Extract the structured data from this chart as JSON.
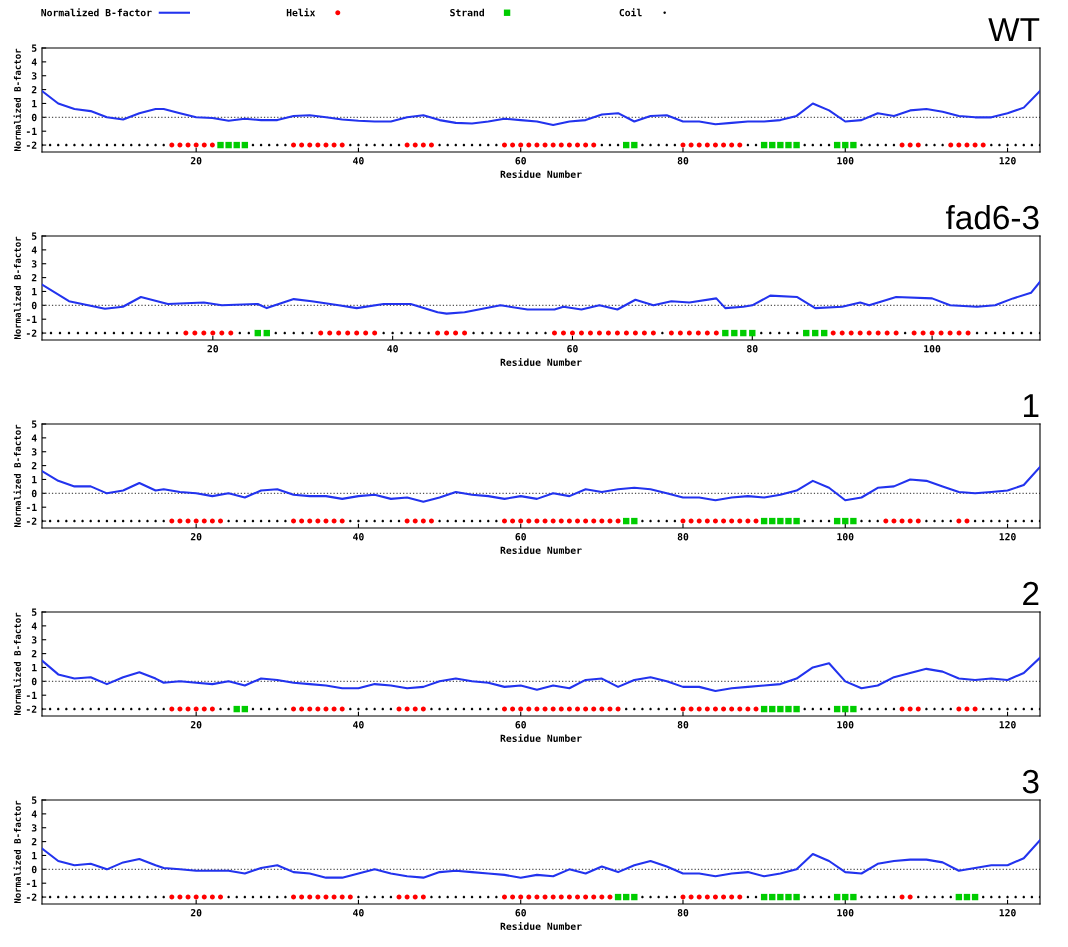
{
  "chart_data": [
    {
      "type": "line",
      "title": "WT",
      "xlabel": "Residue Number",
      "ylabel": "Normalized B-factor",
      "xlim": [
        1,
        124
      ],
      "xticks": [
        20,
        40,
        60,
        80,
        100,
        120
      ],
      "ylim": [
        -2.5,
        5
      ],
      "yticks": [
        -2,
        -1,
        0,
        1,
        2,
        3,
        4,
        5
      ],
      "legend": "top",
      "ref_lines": [
        {
          "axis": "y",
          "value": 0,
          "color": "#555555",
          "line_style": "dotted"
        }
      ],
      "series": [
        {
          "name": "Normalized B-factor",
          "color": "#2233ee",
          "marker": "none",
          "line_style": "solid",
          "x": [
            1,
            3,
            5,
            7,
            9,
            11,
            13,
            15,
            16,
            18,
            20,
            22,
            24,
            26,
            28,
            30,
            32,
            34,
            36,
            38,
            40,
            42,
            44,
            46,
            48,
            50,
            52,
            54,
            56,
            58,
            60,
            62,
            64,
            66,
            68,
            70,
            72,
            74,
            76,
            78,
            80,
            82,
            84,
            86,
            88,
            90,
            92,
            94,
            96,
            98,
            100,
            102,
            104,
            106,
            108,
            110,
            112,
            114,
            116,
            118,
            120,
            122,
            124
          ],
          "values": [
            1.9,
            1.0,
            0.6,
            0.45,
            0.0,
            -0.15,
            0.3,
            0.6,
            0.6,
            0.3,
            0.0,
            -0.05,
            -0.25,
            -0.1,
            -0.2,
            -0.2,
            0.1,
            0.15,
            0.0,
            -0.15,
            -0.25,
            -0.3,
            -0.3,
            0.0,
            0.15,
            -0.2,
            -0.4,
            -0.45,
            -0.3,
            -0.1,
            -0.2,
            -0.3,
            -0.55,
            -0.3,
            -0.2,
            0.2,
            0.3,
            -0.3,
            0.1,
            0.15,
            -0.3,
            -0.3,
            -0.5,
            -0.4,
            -0.3,
            -0.3,
            -0.2,
            0.1,
            1.0,
            0.5,
            -0.3,
            -0.2,
            0.3,
            0.1,
            0.5,
            0.6,
            0.4,
            0.1,
            0.0,
            0.0,
            0.3,
            0.7,
            1.9
          ]
        },
        {
          "name": "Helix",
          "type": "scatter",
          "color": "#ff0000",
          "marker": "circle",
          "x": [
            17,
            18,
            19,
            20,
            21,
            22,
            32,
            33,
            34,
            35,
            36,
            37,
            38,
            46,
            47,
            48,
            49,
            58,
            59,
            60,
            61,
            62,
            63,
            64,
            65,
            66,
            67,
            68,
            69,
            80,
            81,
            82,
            83,
            84,
            85,
            86,
            87,
            107,
            108,
            109,
            113,
            114,
            115,
            116,
            117
          ],
          "values": [
            -2,
            -2,
            -2,
            -2,
            -2,
            -2,
            -2,
            -2,
            -2,
            -2,
            -2,
            -2,
            -2,
            -2,
            -2,
            -2,
            -2,
            -2,
            -2,
            -2,
            -2,
            -2,
            -2,
            -2,
            -2,
            -2,
            -2,
            -2,
            -2,
            -2,
            -2,
            -2,
            -2,
            -2,
            -2,
            -2,
            -2,
            -2,
            -2,
            -2,
            -2,
            -2,
            -2,
            -2,
            -2
          ]
        },
        {
          "name": "Strand",
          "type": "scatter",
          "color": "#00cc00",
          "marker": "square",
          "x": [
            23,
            24,
            25,
            26,
            73,
            74,
            90,
            91,
            92,
            93,
            94,
            99,
            100,
            101
          ],
          "values": [
            -2,
            -2,
            -2,
            -2,
            -2,
            -2,
            -2,
            -2,
            -2,
            -2,
            -2,
            -2,
            -2,
            -2
          ]
        },
        {
          "name": "Coil",
          "type": "scatter",
          "color": "#000000",
          "marker": "circle",
          "x": [
            1,
            2,
            3,
            4,
            5,
            6,
            7,
            8,
            9,
            10,
            11,
            12,
            13,
            14,
            15,
            16,
            27,
            28,
            29,
            30,
            31,
            39,
            40,
            41,
            42,
            43,
            44,
            45,
            50,
            51,
            52,
            53,
            54,
            55,
            56,
            57,
            70,
            71,
            72,
            75,
            76,
            77,
            78,
            79,
            88,
            89,
            95,
            96,
            97,
            98,
            102,
            103,
            104,
            105,
            106,
            110,
            111,
            112,
            118,
            119,
            120,
            121,
            122,
            123,
            124
          ],
          "values": [
            -2,
            -2,
            -2,
            -2,
            -2,
            -2,
            -2,
            -2,
            -2,
            -2,
            -2,
            -2,
            -2,
            -2,
            -2,
            -2,
            -2,
            -2,
            -2,
            -2,
            -2,
            -2,
            -2,
            -2,
            -2,
            -2,
            -2,
            -2,
            -2,
            -2,
            -2,
            -2,
            -2,
            -2,
            -2,
            -2,
            -2,
            -2,
            -2,
            -2,
            -2,
            -2,
            -2,
            -2,
            -2,
            -2,
            -2,
            -2,
            -2,
            -2,
            -2,
            -2,
            -2,
            -2,
            -2,
            -2,
            -2,
            -2,
            -2,
            -2,
            -2,
            -2,
            -2,
            -2,
            -2
          ]
        }
      ]
    },
    {
      "type": "line",
      "title": "fad6-3",
      "xlabel": "Residue Number",
      "ylabel": "Normalized B-factor",
      "xlim": [
        1,
        112
      ],
      "xticks": [
        20,
        40,
        60,
        80,
        100
      ],
      "ylim": [
        -2.5,
        5
      ],
      "yticks": [
        -2,
        -1,
        0,
        1,
        2,
        3,
        4,
        5
      ],
      "ref_lines": [
        {
          "axis": "y",
          "value": 0,
          "color": "#555555",
          "line_style": "dotted"
        }
      ],
      "series": [
        {
          "color": "#2233ee",
          "marker": "none",
          "line_style": "solid",
          "x": [
            1,
            4,
            8,
            10,
            12,
            15,
            19,
            21,
            25,
            26,
            29,
            31,
            34,
            36,
            39,
            42,
            45,
            46,
            48,
            52,
            55,
            58,
            59,
            61,
            63,
            65,
            67,
            69,
            71,
            73,
            76,
            77,
            79,
            80,
            82,
            85,
            87,
            90,
            92,
            93,
            96,
            100,
            102,
            105,
            107,
            109,
            111,
            112
          ],
          "values": [
            1.5,
            0.3,
            -0.25,
            -0.1,
            0.6,
            0.1,
            0.2,
            0.0,
            0.1,
            -0.2,
            0.45,
            0.3,
            0.0,
            -0.2,
            0.1,
            0.1,
            -0.5,
            -0.6,
            -0.5,
            0.0,
            -0.3,
            -0.3,
            -0.1,
            -0.3,
            0.0,
            -0.3,
            0.4,
            0.0,
            0.3,
            0.2,
            0.5,
            -0.2,
            -0.1,
            0.0,
            0.7,
            0.6,
            -0.2,
            -0.1,
            0.2,
            0.0,
            0.6,
            0.5,
            0.0,
            -0.1,
            0.0,
            0.5,
            0.9,
            1.7
          ]
        },
        {
          "type": "scatter",
          "color": "#ff0000",
          "marker": "circle",
          "x": [
            17,
            18,
            19,
            20,
            21,
            22,
            32,
            33,
            34,
            35,
            36,
            37,
            38,
            45,
            46,
            47,
            48,
            58,
            59,
            60,
            61,
            62,
            63,
            64,
            65,
            66,
            67,
            68,
            69,
            71,
            72,
            73,
            74,
            75,
            76,
            89,
            90,
            91,
            92,
            93,
            94,
            95,
            96,
            98,
            99,
            100,
            101,
            102,
            103,
            104
          ],
          "values": [
            -2,
            -2,
            -2,
            -2,
            -2,
            -2,
            -2,
            -2,
            -2,
            -2,
            -2,
            -2,
            -2,
            -2,
            -2,
            -2,
            -2,
            -2,
            -2,
            -2,
            -2,
            -2,
            -2,
            -2,
            -2,
            -2,
            -2,
            -2,
            -2,
            -2,
            -2,
            -2,
            -2,
            -2,
            -2,
            -2,
            -2,
            -2,
            -2,
            -2,
            -2,
            -2,
            -2,
            -2,
            -2,
            -2,
            -2,
            -2,
            -2,
            -2
          ]
        },
        {
          "type": "scatter",
          "color": "#00cc00",
          "marker": "square",
          "x": [
            25,
            26,
            77,
            78,
            79,
            80,
            86,
            87,
            88
          ],
          "values": [
            -2,
            -2,
            -2,
            -2,
            -2,
            -2,
            -2,
            -2,
            -2
          ]
        },
        {
          "type": "scatter",
          "color": "#000000",
          "marker": "circle",
          "x": [
            1,
            2,
            3,
            4,
            5,
            6,
            7,
            8,
            9,
            10,
            11,
            12,
            13,
            14,
            15,
            16,
            23,
            24,
            27,
            28,
            29,
            30,
            31,
            39,
            40,
            41,
            42,
            43,
            44,
            49,
            50,
            51,
            52,
            53,
            54,
            55,
            56,
            57,
            70,
            81,
            82,
            83,
            84,
            85,
            97,
            105,
            106,
            107,
            108,
            109,
            110,
            111,
            112
          ],
          "values": [
            -2,
            -2,
            -2,
            -2,
            -2,
            -2,
            -2,
            -2,
            -2,
            -2,
            -2,
            -2,
            -2,
            -2,
            -2,
            -2,
            -2,
            -2,
            -2,
            -2,
            -2,
            -2,
            -2,
            -2,
            -2,
            -2,
            -2,
            -2,
            -2,
            -2,
            -2,
            -2,
            -2,
            -2,
            -2,
            -2,
            -2,
            -2,
            -2,
            -2,
            -2,
            -2,
            -2,
            -2,
            -2,
            -2,
            -2,
            -2,
            -2,
            -2,
            -2,
            -2,
            -2
          ]
        }
      ]
    },
    {
      "type": "line",
      "title": "1",
      "xlabel": "Residue Number",
      "ylabel": "Normalized B-factor",
      "xlim": [
        1,
        124
      ],
      "xticks": [
        20,
        40,
        60,
        80,
        100,
        120
      ],
      "ylim": [
        -2.5,
        5
      ],
      "yticks": [
        -2,
        -1,
        0,
        1,
        2,
        3,
        4,
        5
      ],
      "ref_lines": [
        {
          "axis": "y",
          "value": 0,
          "color": "#555555",
          "line_style": "dotted"
        }
      ],
      "series": [
        {
          "color": "#2233ee",
          "marker": "none",
          "line_style": "solid",
          "x": [
            1,
            3,
            5,
            7,
            9,
            11,
            13,
            15,
            16,
            18,
            20,
            22,
            24,
            26,
            28,
            30,
            32,
            34,
            36,
            38,
            40,
            42,
            44,
            46,
            48,
            50,
            52,
            54,
            56,
            58,
            60,
            62,
            64,
            66,
            68,
            70,
            72,
            74,
            76,
            78,
            80,
            82,
            84,
            86,
            88,
            90,
            92,
            94,
            96,
            98,
            100,
            102,
            104,
            106,
            108,
            110,
            112,
            114,
            116,
            118,
            120,
            122,
            124
          ],
          "values": [
            1.6,
            0.9,
            0.5,
            0.5,
            0.0,
            0.2,
            0.75,
            0.2,
            0.3,
            0.1,
            0.0,
            -0.2,
            0.0,
            -0.3,
            0.2,
            0.3,
            -0.1,
            -0.2,
            -0.2,
            -0.4,
            -0.2,
            -0.1,
            -0.4,
            -0.3,
            -0.6,
            -0.3,
            0.1,
            -0.1,
            -0.2,
            -0.4,
            -0.2,
            -0.4,
            0.0,
            -0.2,
            0.3,
            0.1,
            0.3,
            0.4,
            0.3,
            0.0,
            -0.3,
            -0.3,
            -0.5,
            -0.3,
            -0.2,
            -0.3,
            -0.1,
            0.2,
            0.9,
            0.4,
            -0.5,
            -0.3,
            0.4,
            0.5,
            1.0,
            0.9,
            0.5,
            0.1,
            0.0,
            0.1,
            0.2,
            0.6,
            1.9
          ]
        },
        {
          "type": "scatter",
          "color": "#ff0000",
          "marker": "circle",
          "x": [
            17,
            18,
            19,
            20,
            21,
            22,
            23,
            32,
            33,
            34,
            35,
            36,
            37,
            38,
            46,
            47,
            48,
            49,
            58,
            59,
            60,
            61,
            62,
            63,
            64,
            65,
            66,
            67,
            68,
            69,
            70,
            71,
            72,
            80,
            81,
            82,
            83,
            84,
            85,
            86,
            87,
            88,
            89,
            105,
            106,
            107,
            108,
            109,
            114,
            115
          ],
          "values": [
            -2,
            -2,
            -2,
            -2,
            -2,
            -2,
            -2,
            -2,
            -2,
            -2,
            -2,
            -2,
            -2,
            -2,
            -2,
            -2,
            -2,
            -2,
            -2,
            -2,
            -2,
            -2,
            -2,
            -2,
            -2,
            -2,
            -2,
            -2,
            -2,
            -2,
            -2,
            -2,
            -2,
            -2,
            -2,
            -2,
            -2,
            -2,
            -2,
            -2,
            -2,
            -2,
            -2,
            -2,
            -2,
            -2,
            -2,
            -2,
            -2,
            -2
          ]
        },
        {
          "type": "scatter",
          "color": "#00cc00",
          "marker": "square",
          "x": [
            73,
            74,
            90,
            91,
            92,
            93,
            94,
            99,
            100,
            101
          ],
          "values": [
            -2,
            -2,
            -2,
            -2,
            -2,
            -2,
            -2,
            -2,
            -2,
            -2
          ]
        },
        {
          "type": "scatter",
          "color": "#000000",
          "marker": "circle",
          "x": [
            1,
            2,
            3,
            4,
            5,
            6,
            7,
            8,
            9,
            10,
            11,
            12,
            13,
            14,
            15,
            16,
            24,
            25,
            26,
            27,
            28,
            29,
            30,
            31,
            39,
            40,
            41,
            42,
            43,
            44,
            45,
            50,
            51,
            52,
            53,
            54,
            55,
            56,
            57,
            75,
            76,
            77,
            78,
            79,
            95,
            96,
            97,
            98,
            102,
            103,
            104,
            110,
            111,
            112,
            113,
            116,
            117,
            118,
            119,
            120,
            121,
            122,
            123,
            124
          ],
          "values": [
            -2,
            -2,
            -2,
            -2,
            -2,
            -2,
            -2,
            -2,
            -2,
            -2,
            -2,
            -2,
            -2,
            -2,
            -2,
            -2,
            -2,
            -2,
            -2,
            -2,
            -2,
            -2,
            -2,
            -2,
            -2,
            -2,
            -2,
            -2,
            -2,
            -2,
            -2,
            -2,
            -2,
            -2,
            -2,
            -2,
            -2,
            -2,
            -2,
            -2,
            -2,
            -2,
            -2,
            -2,
            -2,
            -2,
            -2,
            -2,
            -2,
            -2,
            -2,
            -2,
            -2,
            -2,
            -2,
            -2,
            -2,
            -2,
            -2,
            -2,
            -2,
            -2,
            -2,
            -2
          ]
        }
      ]
    },
    {
      "type": "line",
      "title": "2",
      "xlabel": "Residue Number",
      "ylabel": "Normalized B-factor",
      "xlim": [
        1,
        124
      ],
      "xticks": [
        20,
        40,
        60,
        80,
        100,
        120
      ],
      "ylim": [
        -2.5,
        5
      ],
      "yticks": [
        -2,
        -1,
        0,
        1,
        2,
        3,
        4,
        5
      ],
      "ref_lines": [
        {
          "axis": "y",
          "value": 0,
          "color": "#555555",
          "line_style": "dotted"
        }
      ],
      "series": [
        {
          "color": "#2233ee",
          "marker": "none",
          "line_style": "solid",
          "x": [
            1,
            3,
            5,
            7,
            9,
            11,
            13,
            15,
            16,
            18,
            20,
            22,
            24,
            26,
            28,
            30,
            32,
            34,
            36,
            38,
            40,
            42,
            44,
            46,
            48,
            50,
            52,
            54,
            56,
            58,
            60,
            62,
            64,
            66,
            68,
            70,
            72,
            74,
            76,
            78,
            80,
            82,
            84,
            86,
            88,
            90,
            92,
            94,
            96,
            98,
            100,
            102,
            104,
            106,
            108,
            110,
            112,
            114,
            116,
            118,
            120,
            122,
            124
          ],
          "values": [
            1.5,
            0.5,
            0.2,
            0.3,
            -0.2,
            0.3,
            0.65,
            0.2,
            -0.1,
            0.0,
            -0.1,
            -0.2,
            0.0,
            -0.3,
            0.2,
            0.1,
            -0.1,
            -0.2,
            -0.3,
            -0.5,
            -0.5,
            -0.2,
            -0.3,
            -0.5,
            -0.4,
            0.0,
            0.2,
            0.0,
            -0.1,
            -0.4,
            -0.3,
            -0.6,
            -0.3,
            -0.5,
            0.1,
            0.2,
            -0.4,
            0.1,
            0.3,
            0.0,
            -0.4,
            -0.4,
            -0.7,
            -0.5,
            -0.4,
            -0.3,
            -0.2,
            0.2,
            1.0,
            1.3,
            0.0,
            -0.5,
            -0.3,
            0.3,
            0.6,
            0.9,
            0.7,
            0.2,
            0.1,
            0.2,
            0.1,
            0.6,
            1.7
          ]
        },
        {
          "type": "scatter",
          "color": "#ff0000",
          "marker": "circle",
          "x": [
            17,
            18,
            19,
            20,
            21,
            22,
            32,
            33,
            34,
            35,
            36,
            37,
            38,
            45,
            46,
            47,
            48,
            58,
            59,
            60,
            61,
            62,
            63,
            64,
            65,
            66,
            67,
            68,
            69,
            70,
            71,
            72,
            80,
            81,
            82,
            83,
            84,
            85,
            86,
            87,
            88,
            89,
            107,
            108,
            109,
            114,
            115,
            116
          ],
          "values": [
            -2,
            -2,
            -2,
            -2,
            -2,
            -2,
            -2,
            -2,
            -2,
            -2,
            -2,
            -2,
            -2,
            -2,
            -2,
            -2,
            -2,
            -2,
            -2,
            -2,
            -2,
            -2,
            -2,
            -2,
            -2,
            -2,
            -2,
            -2,
            -2,
            -2,
            -2,
            -2,
            -2,
            -2,
            -2,
            -2,
            -2,
            -2,
            -2,
            -2,
            -2,
            -2,
            -2,
            -2,
            -2,
            -2,
            -2,
            -2
          ]
        },
        {
          "type": "scatter",
          "color": "#00cc00",
          "marker": "square",
          "x": [
            25,
            26,
            90,
            91,
            92,
            93,
            94,
            99,
            100,
            101
          ],
          "values": [
            -2,
            -2,
            -2,
            -2,
            -2,
            -2,
            -2,
            -2,
            -2,
            -2
          ]
        },
        {
          "type": "scatter",
          "color": "#000000",
          "marker": "circle",
          "x": [
            1,
            2,
            3,
            4,
            5,
            6,
            7,
            8,
            9,
            10,
            11,
            12,
            13,
            14,
            15,
            16,
            23,
            24,
            27,
            28,
            29,
            30,
            31,
            39,
            40,
            41,
            42,
            43,
            44,
            49,
            50,
            51,
            52,
            53,
            54,
            55,
            56,
            57,
            73,
            74,
            75,
            76,
            77,
            78,
            79,
            95,
            96,
            97,
            98,
            102,
            103,
            104,
            105,
            106,
            110,
            111,
            112,
            113,
            117,
            118,
            119,
            120,
            121,
            122,
            123,
            124
          ],
          "values": [
            -2,
            -2,
            -2,
            -2,
            -2,
            -2,
            -2,
            -2,
            -2,
            -2,
            -2,
            -2,
            -2,
            -2,
            -2,
            -2,
            -2,
            -2,
            -2,
            -2,
            -2,
            -2,
            -2,
            -2,
            -2,
            -2,
            -2,
            -2,
            -2,
            -2,
            -2,
            -2,
            -2,
            -2,
            -2,
            -2,
            -2,
            -2,
            -2,
            -2,
            -2,
            -2,
            -2,
            -2,
            -2,
            -2,
            -2,
            -2,
            -2,
            -2,
            -2,
            -2,
            -2,
            -2,
            -2,
            -2,
            -2,
            -2,
            -2,
            -2,
            -2,
            -2,
            -2,
            -2,
            -2,
            -2
          ]
        }
      ]
    },
    {
      "type": "line",
      "title": "3",
      "xlabel": "Residue Number",
      "ylabel": "Normalized B-factor",
      "xlim": [
        1,
        124
      ],
      "xticks": [
        20,
        40,
        60,
        80,
        100,
        120
      ],
      "ylim": [
        -2.5,
        5
      ],
      "yticks": [
        -2,
        -1,
        0,
        1,
        2,
        3,
        4,
        5
      ],
      "ref_lines": [
        {
          "axis": "y",
          "value": 0,
          "color": "#555555",
          "line_style": "dotted"
        }
      ],
      "series": [
        {
          "color": "#2233ee",
          "marker": "none",
          "line_style": "solid",
          "x": [
            1,
            3,
            5,
            7,
            9,
            11,
            13,
            15,
            16,
            18,
            20,
            22,
            24,
            26,
            28,
            30,
            32,
            34,
            36,
            38,
            40,
            42,
            44,
            46,
            48,
            50,
            52,
            54,
            56,
            58,
            60,
            62,
            64,
            66,
            68,
            70,
            72,
            74,
            76,
            78,
            80,
            82,
            84,
            86,
            88,
            90,
            92,
            94,
            96,
            98,
            100,
            102,
            104,
            106,
            108,
            110,
            112,
            114,
            116,
            118,
            120,
            122,
            124
          ],
          "values": [
            1.5,
            0.6,
            0.3,
            0.4,
            0.0,
            0.5,
            0.75,
            0.3,
            0.1,
            0.0,
            -0.1,
            -0.1,
            -0.1,
            -0.3,
            0.1,
            0.3,
            -0.2,
            -0.3,
            -0.6,
            -0.6,
            -0.3,
            0.0,
            -0.3,
            -0.5,
            -0.6,
            -0.2,
            -0.1,
            -0.2,
            -0.3,
            -0.4,
            -0.6,
            -0.4,
            -0.5,
            0.0,
            -0.3,
            0.2,
            -0.2,
            0.3,
            0.6,
            0.2,
            -0.3,
            -0.3,
            -0.5,
            -0.3,
            -0.2,
            -0.5,
            -0.3,
            0.0,
            1.1,
            0.6,
            -0.2,
            -0.3,
            0.4,
            0.6,
            0.7,
            0.7,
            0.5,
            -0.1,
            0.1,
            0.3,
            0.3,
            0.8,
            2.1
          ]
        },
        {
          "type": "scatter",
          "color": "#ff0000",
          "marker": "circle",
          "x": [
            17,
            18,
            19,
            20,
            21,
            22,
            23,
            32,
            33,
            34,
            35,
            36,
            37,
            38,
            39,
            45,
            46,
            47,
            48,
            58,
            59,
            60,
            61,
            62,
            63,
            64,
            65,
            66,
            67,
            68,
            69,
            70,
            71,
            80,
            81,
            82,
            83,
            84,
            85,
            86,
            87,
            107,
            108
          ],
          "values": [
            -2,
            -2,
            -2,
            -2,
            -2,
            -2,
            -2,
            -2,
            -2,
            -2,
            -2,
            -2,
            -2,
            -2,
            -2,
            -2,
            -2,
            -2,
            -2,
            -2,
            -2,
            -2,
            -2,
            -2,
            -2,
            -2,
            -2,
            -2,
            -2,
            -2,
            -2,
            -2,
            -2,
            -2,
            -2,
            -2,
            -2,
            -2,
            -2,
            -2,
            -2,
            -2,
            -2
          ]
        },
        {
          "type": "scatter",
          "color": "#00cc00",
          "marker": "square",
          "x": [
            72,
            73,
            74,
            90,
            91,
            92,
            93,
            94,
            99,
            100,
            101,
            114,
            115,
            116
          ],
          "values": [
            -2,
            -2,
            -2,
            -2,
            -2,
            -2,
            -2,
            -2,
            -2,
            -2,
            -2,
            -2,
            -2,
            -2
          ]
        },
        {
          "type": "scatter",
          "color": "#000000",
          "marker": "circle",
          "x": [
            1,
            2,
            3,
            4,
            5,
            6,
            7,
            8,
            9,
            10,
            11,
            12,
            13,
            14,
            15,
            16,
            24,
            25,
            26,
            27,
            28,
            29,
            30,
            31,
            40,
            41,
            42,
            43,
            44,
            49,
            50,
            51,
            52,
            53,
            54,
            55,
            56,
            57,
            75,
            76,
            77,
            78,
            79,
            88,
            89,
            95,
            96,
            97,
            98,
            102,
            103,
            104,
            105,
            106,
            109,
            110,
            111,
            112,
            113,
            117,
            118,
            119,
            120,
            121,
            122,
            123,
            124
          ],
          "values": [
            -2,
            -2,
            -2,
            -2,
            -2,
            -2,
            -2,
            -2,
            -2,
            -2,
            -2,
            -2,
            -2,
            -2,
            -2,
            -2,
            -2,
            -2,
            -2,
            -2,
            -2,
            -2,
            -2,
            -2,
            -2,
            -2,
            -2,
            -2,
            -2,
            -2,
            -2,
            -2,
            -2,
            -2,
            -2,
            -2,
            -2,
            -2,
            -2,
            -2,
            -2,
            -2,
            -2,
            -2,
            -2,
            -2,
            -2,
            -2,
            -2,
            -2,
            -2,
            -2,
            -2,
            -2,
            -2,
            -2,
            -2,
            -2,
            -2,
            -2,
            -2,
            -2,
            -2,
            -2,
            -2,
            -2,
            -2
          ]
        }
      ]
    }
  ]
}
